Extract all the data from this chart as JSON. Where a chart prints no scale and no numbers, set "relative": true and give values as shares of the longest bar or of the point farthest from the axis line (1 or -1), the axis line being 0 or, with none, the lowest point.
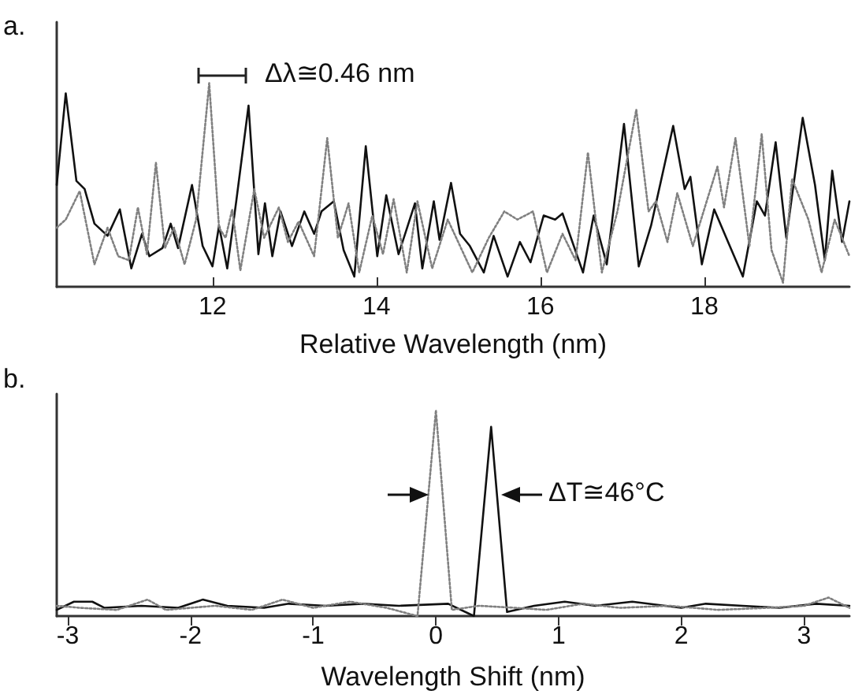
{
  "chart_data": [
    {
      "type": "line",
      "relative": true,
      "xlabel": "Relative Wavelength (nm)",
      "xlim": [
        10.1,
        19.77
      ],
      "xticks": [
        12,
        14,
        16,
        18
      ],
      "annotations": [
        "a.",
        "Δλ≅0.46 nm"
      ],
      "series": [
        {
          "color": "#111111",
          "line_style": "solid",
          "x": [
            10.1,
            10.21,
            10.34,
            10.44,
            10.56,
            10.72,
            10.87,
            11.01,
            11.14,
            11.23,
            11.39,
            11.49,
            11.58,
            11.75,
            11.88,
            12.0,
            12.08,
            12.18,
            12.29,
            12.44,
            12.56,
            12.64,
            12.73,
            12.83,
            12.97,
            13.12,
            13.24,
            13.33,
            13.48,
            13.6,
            13.73,
            13.87,
            14.01,
            14.12,
            14.27,
            14.47,
            14.56,
            14.7,
            14.77,
            14.91,
            15.02,
            15.14,
            15.31,
            15.43,
            15.6,
            15.75,
            15.88,
            16.04,
            16.18,
            16.27,
            16.52,
            16.65,
            16.81,
            17.02,
            17.2,
            17.35,
            17.62,
            17.76,
            17.83,
            17.97,
            18.12,
            18.29,
            18.47,
            18.64,
            18.74,
            18.87,
            19.0,
            19.2,
            19.35,
            19.47,
            19.56,
            19.68,
            19.77
          ],
          "values": [
            0.5,
            0.95,
            0.52,
            0.48,
            0.31,
            0.25,
            0.38,
            0.09,
            0.26,
            0.15,
            0.19,
            0.31,
            0.19,
            0.5,
            0.2,
            0.1,
            0.3,
            0.09,
            0.42,
            0.89,
            0.16,
            0.41,
            0.15,
            0.37,
            0.2,
            0.37,
            0.26,
            0.37,
            0.42,
            0.18,
            0.05,
            0.69,
            0.15,
            0.45,
            0.16,
            0.41,
            0.09,
            0.42,
            0.23,
            0.51,
            0.26,
            0.2,
            0.07,
            0.25,
            0.05,
            0.22,
            0.12,
            0.35,
            0.33,
            0.36,
            0.07,
            0.35,
            0.11,
            0.8,
            0.1,
            0.3,
            0.79,
            0.48,
            0.54,
            0.11,
            0.38,
            0.22,
            0.05,
            0.42,
            0.35,
            0.71,
            0.24,
            0.83,
            0.5,
            0.13,
            0.57,
            0.22,
            0.42
          ]
        },
        {
          "color": "#808080",
          "line_style": "dotted",
          "x": [
            10.1,
            10.21,
            10.38,
            10.56,
            10.72,
            10.85,
            10.98,
            11.09,
            11.2,
            11.31,
            11.42,
            11.53,
            11.66,
            11.8,
            11.96,
            12.08,
            12.16,
            12.24,
            12.34,
            12.51,
            12.63,
            12.81,
            12.92,
            13.05,
            13.24,
            13.4,
            13.53,
            13.66,
            13.79,
            13.95,
            14.08,
            14.21,
            14.37,
            14.5,
            14.68,
            14.87,
            15.17,
            15.37,
            15.56,
            15.72,
            15.91,
            16.08,
            16.27,
            16.43,
            16.58,
            16.75,
            16.94,
            17.17,
            17.32,
            17.41,
            17.55,
            17.67,
            17.86,
            18.16,
            18.24,
            18.38,
            18.55,
            18.7,
            18.82,
            18.96,
            19.07,
            19.27,
            19.43,
            19.59,
            19.77
          ],
          "values": [
            0.29,
            0.33,
            0.47,
            0.11,
            0.29,
            0.15,
            0.13,
            0.39,
            0.16,
            0.61,
            0.19,
            0.29,
            0.11,
            0.33,
            1,
            0.29,
            0.24,
            0.38,
            0.08,
            0.48,
            0.24,
            0.39,
            0.22,
            0.32,
            0.15,
            0.73,
            0.24,
            0.41,
            0.07,
            0.35,
            0.16,
            0.43,
            0.07,
            0.42,
            0.09,
            0.33,
            0.07,
            0.24,
            0.37,
            0.33,
            0.37,
            0.07,
            0.26,
            0.13,
            0.66,
            0.07,
            0.37,
            0.87,
            0.37,
            0.42,
            0.22,
            0.46,
            0.2,
            0.59,
            0.39,
            0.73,
            0.2,
            0.75,
            0.18,
            0.02,
            0.53,
            0.33,
            0.07,
            0.33,
            0.15
          ]
        }
      ]
    },
    {
      "type": "line",
      "relative": true,
      "xlabel": "Wavelength Shift (nm)",
      "xlim": [
        -3.09,
        3.37
      ],
      "xticks": [
        -3,
        -2,
        -1,
        0,
        1,
        2,
        3
      ],
      "annotations": [
        "b.",
        "ΔT≅46°C"
      ],
      "series": [
        {
          "color": "#111111",
          "line_style": "solid",
          "x": [
            -3.09,
            -2.95,
            -2.8,
            -2.7,
            -2.4,
            -2.1,
            -1.9,
            -1.7,
            -1.4,
            -1.2,
            -0.9,
            -0.6,
            -0.3,
            0.1,
            0.31,
            0.45,
            0.58,
            0.8,
            1.05,
            1.3,
            1.6,
            2.0,
            2.2,
            2.5,
            2.8,
            3.1,
            3.37
          ],
          "values": [
            0.03,
            0.07,
            0.07,
            0.04,
            0.05,
            0.04,
            0.08,
            0.05,
            0.04,
            0.06,
            0.05,
            0.06,
            0.05,
            0.06,
            0.0,
            0.92,
            0.02,
            0.05,
            0.07,
            0.05,
            0.07,
            0.04,
            0.06,
            0.05,
            0.04,
            0.06,
            0.05
          ]
        },
        {
          "color": "#808080",
          "line_style": "dotted",
          "x": [
            -3.09,
            -2.9,
            -2.6,
            -2.35,
            -2.2,
            -1.8,
            -1.5,
            -1.25,
            -1.0,
            -0.7,
            -0.4,
            -0.15,
            0.0,
            0.13,
            0.35,
            0.65,
            0.9,
            1.2,
            1.5,
            1.9,
            2.3,
            2.7,
            3.0,
            3.2,
            3.37
          ],
          "values": [
            0.05,
            0.04,
            0.03,
            0.08,
            0.03,
            0.05,
            0.03,
            0.08,
            0.04,
            0.07,
            0.04,
            0.0,
            1,
            0.03,
            0.05,
            0.04,
            0.03,
            0.06,
            0.04,
            0.05,
            0.03,
            0.04,
            0.05,
            0.09,
            0.04
          ]
        }
      ]
    }
  ]
}
